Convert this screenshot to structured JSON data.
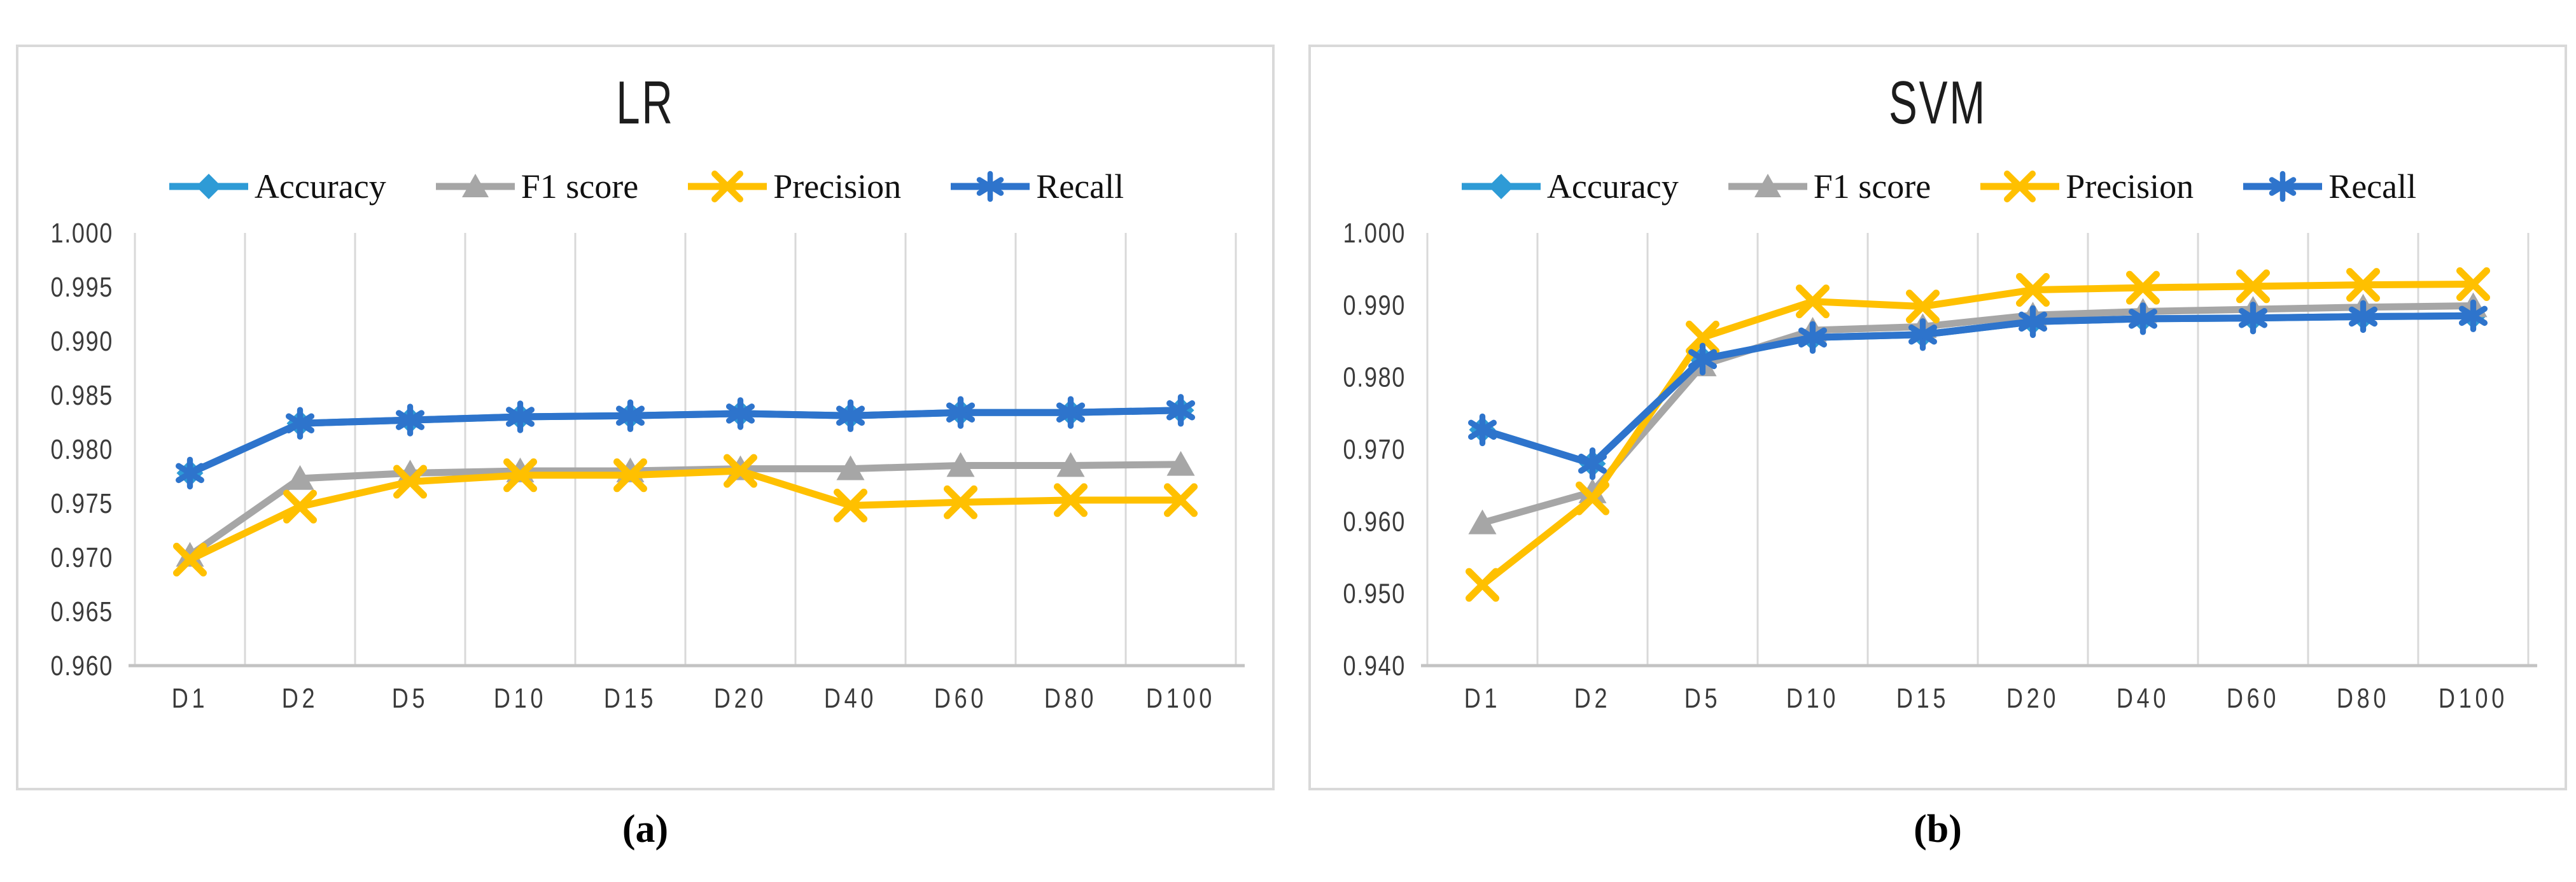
{
  "page": {
    "background": "#ffffff"
  },
  "colors": {
    "accuracy": "#2E9BD6",
    "f1": "#A6A6A6",
    "precision": "#FFC000",
    "recall": "#2E74CC",
    "gridline": "#D9D9D9",
    "axis_line": "#C3C3C3",
    "panel_border": "#D9D9D9",
    "tick_text": "#3B3B3B"
  },
  "panels": [
    {
      "caption": "(a)"
    },
    {
      "caption": "(b)"
    }
  ],
  "chart_data": [
    {
      "type": "line",
      "title": "LR",
      "xlabel": "",
      "ylabel": "",
      "grid": "vertical-only",
      "legend_position": "top",
      "ylim": [
        0.96,
        1.0
      ],
      "ytick_step": 0.005,
      "yticks": [
        "1.000",
        "0.995",
        "0.990",
        "0.985",
        "0.980",
        "0.975",
        "0.970",
        "0.965",
        "0.960"
      ],
      "categories": [
        "D1",
        "D2",
        "D5",
        "D10",
        "D15",
        "D20",
        "D40",
        "D60",
        "D80",
        "D100"
      ],
      "series": [
        {
          "name": "Accuracy",
          "marker": "diamond",
          "color": "#2E9BD6",
          "values": [
            0.9778,
            0.9824,
            0.9827,
            0.983,
            0.9831,
            0.9833,
            0.9831,
            0.9834,
            0.9834,
            0.9836
          ]
        },
        {
          "name": "F1 score",
          "marker": "triangle",
          "color": "#A6A6A6",
          "values": [
            0.9702,
            0.9773,
            0.9778,
            0.978,
            0.978,
            0.9782,
            0.9782,
            0.9785,
            0.9785,
            0.9786
          ]
        },
        {
          "name": "Precision",
          "marker": "x",
          "color": "#FFC000",
          "values": [
            0.9698,
            0.9747,
            0.977,
            0.9776,
            0.9776,
            0.978,
            0.9748,
            0.9751,
            0.9753,
            0.9753
          ]
        },
        {
          "name": "Recall",
          "marker": "asterisk",
          "color": "#2E74CC",
          "values": [
            0.9778,
            0.9824,
            0.9827,
            0.983,
            0.9831,
            0.9833,
            0.9831,
            0.9834,
            0.9834,
            0.9836
          ]
        }
      ]
    },
    {
      "type": "line",
      "title": "SVM",
      "xlabel": "",
      "ylabel": "",
      "grid": "vertical-only",
      "legend_position": "top",
      "ylim": [
        0.94,
        1.0
      ],
      "ytick_step": 0.01,
      "yticks": [
        "1.000",
        "0.990",
        "0.980",
        "0.970",
        "0.960",
        "0.950",
        "0.940"
      ],
      "categories": [
        "D1",
        "D2",
        "D5",
        "D10",
        "D15",
        "D20",
        "D40",
        "D60",
        "D80",
        "D100"
      ],
      "series": [
        {
          "name": "Accuracy",
          "marker": "diamond",
          "color": "#2E9BD6",
          "values": [
            0.9727,
            0.968,
            0.9825,
            0.9855,
            0.9859,
            0.9877,
            0.9881,
            0.9882,
            0.9884,
            0.9885
          ]
        },
        {
          "name": "F1 score",
          "marker": "triangle",
          "color": "#A6A6A6",
          "values": [
            0.9598,
            0.9641,
            0.9817,
            0.9865,
            0.987,
            0.9886,
            0.9891,
            0.9894,
            0.9897,
            0.9899
          ]
        },
        {
          "name": "Precision",
          "marker": "x",
          "color": "#FFC000",
          "values": [
            0.9512,
            0.9632,
            0.9855,
            0.9905,
            0.9898,
            0.9921,
            0.9924,
            0.9926,
            0.9928,
            0.9929
          ]
        },
        {
          "name": "Recall",
          "marker": "asterisk",
          "color": "#2E74CC",
          "values": [
            0.9727,
            0.968,
            0.9825,
            0.9855,
            0.9859,
            0.9877,
            0.9881,
            0.9882,
            0.9884,
            0.9885
          ]
        }
      ]
    }
  ]
}
